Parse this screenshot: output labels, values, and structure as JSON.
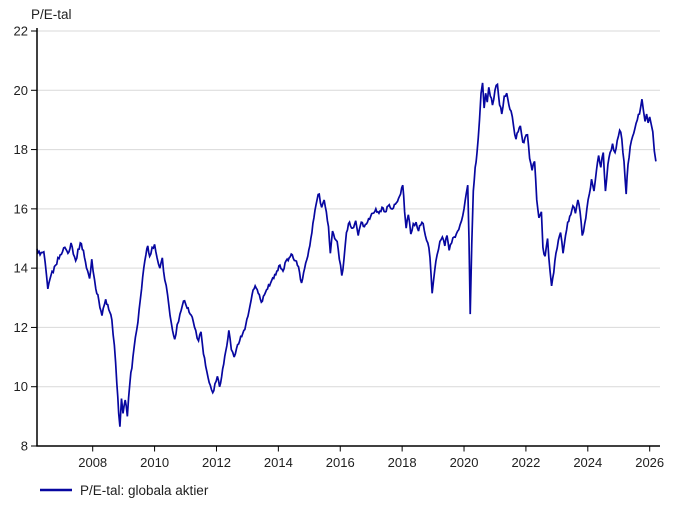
{
  "chart_data": {
    "type": "line",
    "title": "P/E-tal",
    "legend_entries": [
      "P/E-tal: globala aktier"
    ],
    "legend_position": "bottom-left",
    "grid": "horizontal",
    "xlim": [
      2006.2,
      2026.2
    ],
    "ylim": [
      8,
      22
    ],
    "x_ticks": [
      2008,
      2010,
      2012,
      2014,
      2016,
      2018,
      2020,
      2022,
      2024,
      2026
    ],
    "y_ticks": [
      8,
      10,
      12,
      14,
      16,
      18,
      20,
      22
    ],
    "colors": {
      "series": "#0707a0",
      "grid": "#d9d9d9",
      "axis": "#000000",
      "text": "#1f1f1f"
    },
    "series": [
      {
        "name": "P/E-tal: globala aktier",
        "color": "#0707a0",
        "points": [
          [
            2006.2,
            14.65
          ],
          [
            2006.3,
            14.45
          ],
          [
            2006.42,
            14.55
          ],
          [
            2006.55,
            13.3
          ],
          [
            2006.65,
            13.75
          ],
          [
            2006.8,
            14.1
          ],
          [
            2006.95,
            14.45
          ],
          [
            2007.1,
            14.7
          ],
          [
            2007.2,
            14.5
          ],
          [
            2007.3,
            14.85
          ],
          [
            2007.45,
            14.25
          ],
          [
            2007.6,
            14.85
          ],
          [
            2007.7,
            14.6
          ],
          [
            2007.8,
            14.0
          ],
          [
            2007.9,
            13.65
          ],
          [
            2007.97,
            14.3
          ],
          [
            2008.1,
            13.3
          ],
          [
            2008.2,
            12.9
          ],
          [
            2008.3,
            12.4
          ],
          [
            2008.42,
            12.95
          ],
          [
            2008.52,
            12.6
          ],
          [
            2008.62,
            12.25
          ],
          [
            2008.7,
            11.4
          ],
          [
            2008.78,
            10.1
          ],
          [
            2008.84,
            9.1
          ],
          [
            2008.88,
            8.65
          ],
          [
            2008.93,
            9.6
          ],
          [
            2008.98,
            9.1
          ],
          [
            2009.05,
            9.55
          ],
          [
            2009.12,
            9.0
          ],
          [
            2009.2,
            10.1
          ],
          [
            2009.3,
            11.0
          ],
          [
            2009.42,
            11.9
          ],
          [
            2009.5,
            12.6
          ],
          [
            2009.58,
            13.3
          ],
          [
            2009.65,
            14.0
          ],
          [
            2009.72,
            14.45
          ],
          [
            2009.78,
            14.75
          ],
          [
            2009.84,
            14.4
          ],
          [
            2009.92,
            14.7
          ],
          [
            2010.0,
            14.8
          ],
          [
            2010.08,
            14.35
          ],
          [
            2010.17,
            14.0
          ],
          [
            2010.25,
            14.35
          ],
          [
            2010.33,
            13.6
          ],
          [
            2010.42,
            13.1
          ],
          [
            2010.5,
            12.4
          ],
          [
            2010.58,
            11.9
          ],
          [
            2010.65,
            11.6
          ],
          [
            2010.73,
            12.1
          ],
          [
            2010.82,
            12.45
          ],
          [
            2010.9,
            12.75
          ],
          [
            2010.97,
            12.9
          ],
          [
            2011.05,
            12.65
          ],
          [
            2011.15,
            12.45
          ],
          [
            2011.25,
            12.2
          ],
          [
            2011.33,
            11.9
          ],
          [
            2011.42,
            11.55
          ],
          [
            2011.5,
            11.85
          ],
          [
            2011.58,
            11.1
          ],
          [
            2011.65,
            10.7
          ],
          [
            2011.73,
            10.3
          ],
          [
            2011.8,
            10.05
          ],
          [
            2011.88,
            9.8
          ],
          [
            2011.95,
            10.1
          ],
          [
            2012.03,
            10.35
          ],
          [
            2012.1,
            10.0
          ],
          [
            2012.2,
            10.6
          ],
          [
            2012.3,
            11.2
          ],
          [
            2012.4,
            11.9
          ],
          [
            2012.48,
            11.25
          ],
          [
            2012.57,
            11.0
          ],
          [
            2012.65,
            11.3
          ],
          [
            2012.75,
            11.55
          ],
          [
            2012.85,
            11.8
          ],
          [
            2012.95,
            12.1
          ],
          [
            2013.05,
            12.55
          ],
          [
            2013.15,
            13.1
          ],
          [
            2013.25,
            13.4
          ],
          [
            2013.35,
            13.15
          ],
          [
            2013.45,
            12.85
          ],
          [
            2013.55,
            13.1
          ],
          [
            2013.65,
            13.3
          ],
          [
            2013.75,
            13.5
          ],
          [
            2013.85,
            13.65
          ],
          [
            2013.95,
            13.9
          ],
          [
            2014.05,
            14.1
          ],
          [
            2014.15,
            13.9
          ],
          [
            2014.25,
            14.25
          ],
          [
            2014.35,
            14.35
          ],
          [
            2014.45,
            14.45
          ],
          [
            2014.55,
            14.25
          ],
          [
            2014.65,
            14.05
          ],
          [
            2014.75,
            13.5
          ],
          [
            2014.85,
            14.0
          ],
          [
            2014.95,
            14.4
          ],
          [
            2015.05,
            15.0
          ],
          [
            2015.15,
            15.7
          ],
          [
            2015.25,
            16.3
          ],
          [
            2015.32,
            16.5
          ],
          [
            2015.4,
            16.05
          ],
          [
            2015.48,
            16.3
          ],
          [
            2015.55,
            15.9
          ],
          [
            2015.62,
            15.4
          ],
          [
            2015.68,
            14.5
          ],
          [
            2015.75,
            15.25
          ],
          [
            2015.82,
            15.0
          ],
          [
            2015.9,
            14.9
          ],
          [
            2015.97,
            14.3
          ],
          [
            2016.05,
            13.75
          ],
          [
            2016.12,
            14.3
          ],
          [
            2016.2,
            15.2
          ],
          [
            2016.3,
            15.55
          ],
          [
            2016.4,
            15.35
          ],
          [
            2016.5,
            15.6
          ],
          [
            2016.58,
            15.1
          ],
          [
            2016.68,
            15.55
          ],
          [
            2016.78,
            15.4
          ],
          [
            2016.88,
            15.55
          ],
          [
            2016.95,
            15.65
          ],
          [
            2017.05,
            15.85
          ],
          [
            2017.15,
            16.0
          ],
          [
            2017.25,
            15.85
          ],
          [
            2017.35,
            16.05
          ],
          [
            2017.45,
            15.9
          ],
          [
            2017.55,
            16.1
          ],
          [
            2017.65,
            16.0
          ],
          [
            2017.75,
            16.15
          ],
          [
            2017.85,
            16.25
          ],
          [
            2017.95,
            16.5
          ],
          [
            2018.02,
            16.8
          ],
          [
            2018.08,
            15.9
          ],
          [
            2018.13,
            15.35
          ],
          [
            2018.2,
            15.8
          ],
          [
            2018.28,
            15.15
          ],
          [
            2018.36,
            15.5
          ],
          [
            2018.45,
            15.55
          ],
          [
            2018.53,
            15.25
          ],
          [
            2018.6,
            15.45
          ],
          [
            2018.68,
            15.5
          ],
          [
            2018.75,
            15.1
          ],
          [
            2018.83,
            14.85
          ],
          [
            2018.9,
            14.35
          ],
          [
            2018.97,
            13.15
          ],
          [
            2019.05,
            13.9
          ],
          [
            2019.13,
            14.45
          ],
          [
            2019.22,
            14.9
          ],
          [
            2019.3,
            15.05
          ],
          [
            2019.38,
            14.75
          ],
          [
            2019.45,
            15.1
          ],
          [
            2019.52,
            14.6
          ],
          [
            2019.6,
            14.85
          ],
          [
            2019.68,
            15.05
          ],
          [
            2019.75,
            15.15
          ],
          [
            2019.83,
            15.3
          ],
          [
            2019.92,
            15.6
          ],
          [
            2020.0,
            16.0
          ],
          [
            2020.07,
            16.5
          ],
          [
            2020.12,
            16.8
          ],
          [
            2020.16,
            15.0
          ],
          [
            2020.2,
            12.45
          ],
          [
            2020.25,
            14.8
          ],
          [
            2020.3,
            16.6
          ],
          [
            2020.36,
            17.4
          ],
          [
            2020.42,
            17.9
          ],
          [
            2020.5,
            19.0
          ],
          [
            2020.55,
            19.9
          ],
          [
            2020.6,
            20.25
          ],
          [
            2020.65,
            19.4
          ],
          [
            2020.7,
            19.9
          ],
          [
            2020.75,
            19.6
          ],
          [
            2020.8,
            20.1
          ],
          [
            2020.85,
            19.8
          ],
          [
            2020.92,
            19.5
          ],
          [
            2021.0,
            20.0
          ],
          [
            2021.08,
            20.2
          ],
          [
            2021.15,
            19.5
          ],
          [
            2021.22,
            19.2
          ],
          [
            2021.3,
            19.8
          ],
          [
            2021.38,
            19.9
          ],
          [
            2021.45,
            19.5
          ],
          [
            2021.52,
            19.3
          ],
          [
            2021.6,
            18.8
          ],
          [
            2021.68,
            18.35
          ],
          [
            2021.75,
            18.6
          ],
          [
            2021.82,
            18.8
          ],
          [
            2021.9,
            18.25
          ],
          [
            2021.97,
            18.4
          ],
          [
            2022.05,
            18.5
          ],
          [
            2022.12,
            17.7
          ],
          [
            2022.2,
            17.3
          ],
          [
            2022.28,
            17.6
          ],
          [
            2022.35,
            16.3
          ],
          [
            2022.42,
            15.7
          ],
          [
            2022.5,
            15.9
          ],
          [
            2022.55,
            14.7
          ],
          [
            2022.62,
            14.4
          ],
          [
            2022.7,
            15.0
          ],
          [
            2022.78,
            13.9
          ],
          [
            2022.83,
            13.4
          ],
          [
            2022.9,
            13.85
          ],
          [
            2022.97,
            14.5
          ],
          [
            2023.05,
            14.95
          ],
          [
            2023.12,
            15.2
          ],
          [
            2023.2,
            14.5
          ],
          [
            2023.28,
            15.1
          ],
          [
            2023.35,
            15.55
          ],
          [
            2023.45,
            15.8
          ],
          [
            2023.52,
            16.1
          ],
          [
            2023.6,
            15.85
          ],
          [
            2023.68,
            16.3
          ],
          [
            2023.75,
            15.9
          ],
          [
            2023.82,
            15.1
          ],
          [
            2023.9,
            15.5
          ],
          [
            2023.97,
            16.0
          ],
          [
            2024.05,
            16.5
          ],
          [
            2024.12,
            17.0
          ],
          [
            2024.2,
            16.6
          ],
          [
            2024.28,
            17.3
          ],
          [
            2024.35,
            17.8
          ],
          [
            2024.42,
            17.4
          ],
          [
            2024.5,
            17.9
          ],
          [
            2024.57,
            16.6
          ],
          [
            2024.65,
            17.5
          ],
          [
            2024.72,
            17.9
          ],
          [
            2024.8,
            18.2
          ],
          [
            2024.88,
            17.9
          ],
          [
            2024.95,
            18.3
          ],
          [
            2025.03,
            18.65
          ],
          [
            2025.1,
            18.35
          ],
          [
            2025.17,
            17.6
          ],
          [
            2025.24,
            16.5
          ],
          [
            2025.3,
            17.5
          ],
          [
            2025.37,
            18.1
          ],
          [
            2025.45,
            18.45
          ],
          [
            2025.52,
            18.7
          ],
          [
            2025.6,
            19.0
          ],
          [
            2025.67,
            19.2
          ],
          [
            2025.75,
            19.7
          ],
          [
            2025.8,
            19.3
          ],
          [
            2025.85,
            18.95
          ],
          [
            2025.9,
            19.2
          ],
          [
            2025.95,
            18.9
          ],
          [
            2026.0,
            19.1
          ],
          [
            2026.05,
            18.85
          ],
          [
            2026.1,
            18.6
          ],
          [
            2026.15,
            17.95
          ],
          [
            2026.2,
            17.6
          ]
        ]
      }
    ]
  }
}
